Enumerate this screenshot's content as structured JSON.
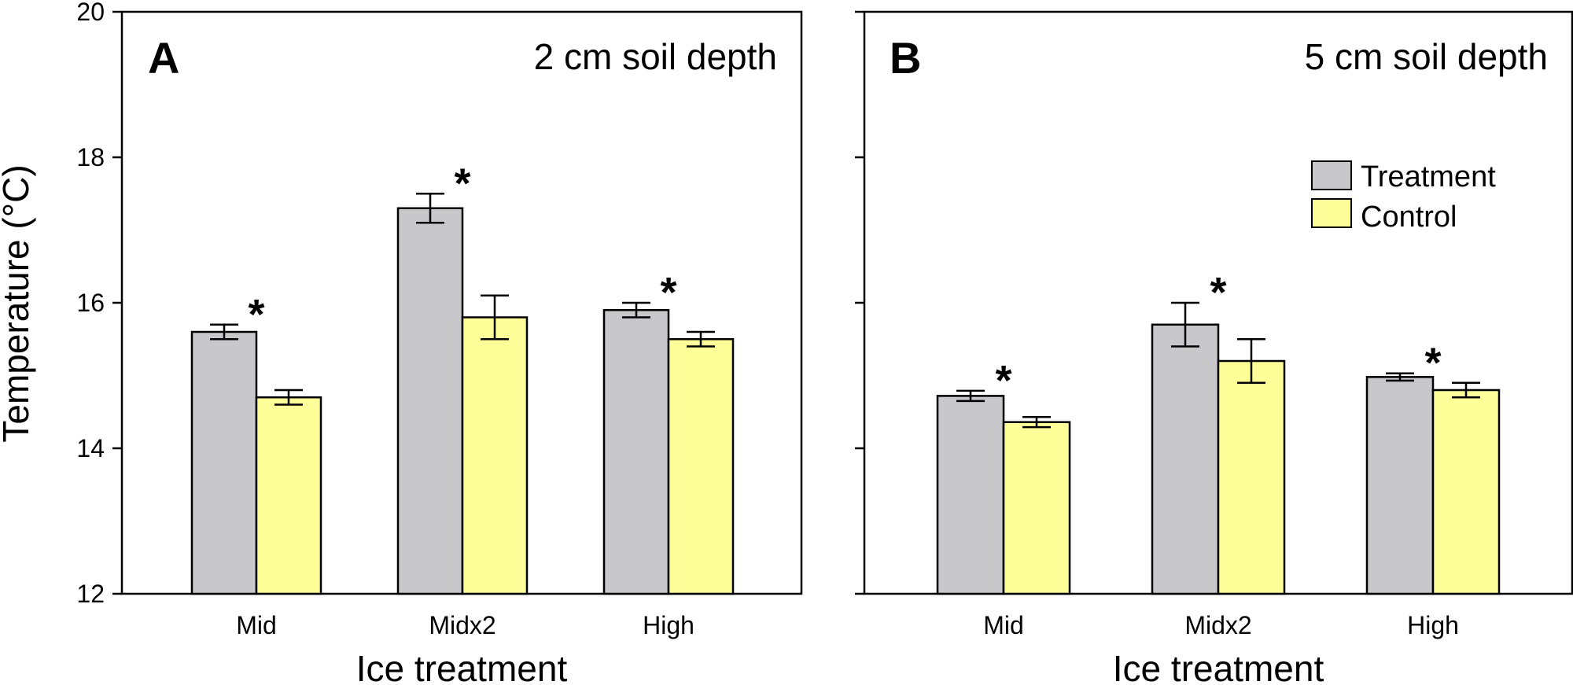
{
  "figure": {
    "y_axis_label": "Temperature (°C)",
    "legend": [
      {
        "label": "Treatment",
        "color": "#c8c8cb"
      },
      {
        "label": "Control",
        "color": "#ffff99"
      }
    ]
  },
  "chart_data": [
    {
      "type": "bar",
      "panel": "A",
      "title": "2 cm soil depth",
      "xlabel": "Ice treatment",
      "ylabel": "Temperature (°C)",
      "ylim": [
        12,
        20
      ],
      "yticks": [
        12,
        14,
        16,
        18,
        20
      ],
      "categories": [
        "Mid",
        "Midx2",
        "High"
      ],
      "series": [
        {
          "name": "Treatment",
          "color": "#c8c8cb",
          "values": [
            15.6,
            17.3,
            15.9
          ],
          "errors": [
            0.1,
            0.2,
            0.1
          ]
        },
        {
          "name": "Control",
          "color": "#ffff99",
          "values": [
            14.7,
            15.8,
            15.5
          ],
          "errors": [
            0.1,
            0.3,
            0.1
          ]
        }
      ],
      "significance": [
        "*",
        "*",
        "*"
      ]
    },
    {
      "type": "bar",
      "panel": "B",
      "title": "5 cm soil depth",
      "xlabel": "Ice treatment",
      "ylabel": "",
      "ylim": [
        12,
        20
      ],
      "yticks": [
        12,
        14,
        16,
        18,
        20
      ],
      "categories": [
        "Mid",
        "Midx2",
        "High"
      ],
      "series": [
        {
          "name": "Treatment",
          "color": "#c8c8cb",
          "values": [
            14.72,
            15.7,
            14.98
          ],
          "errors": [
            0.07,
            0.3,
            0.05
          ]
        },
        {
          "name": "Control",
          "color": "#ffff99",
          "values": [
            14.36,
            15.2,
            14.8
          ],
          "errors": [
            0.07,
            0.3,
            0.1
          ]
        }
      ],
      "significance": [
        "*",
        "*",
        "*"
      ],
      "legend_position": "top-right"
    }
  ]
}
